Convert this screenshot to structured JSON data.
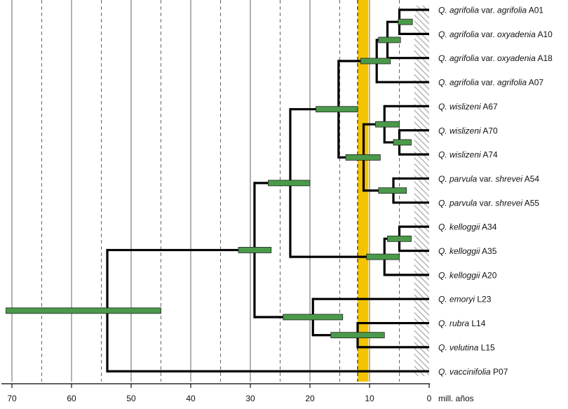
{
  "chart_data": {
    "type": "chronogram",
    "xlabel": "mill. años",
    "xlim": [
      71,
      0
    ],
    "ticks": [
      70,
      60,
      50,
      40,
      30,
      20,
      10,
      0
    ],
    "grid_solid": [
      70,
      60,
      50,
      40,
      30,
      20,
      10
    ],
    "grid_dashed": [
      65,
      55,
      45,
      35,
      25,
      15,
      5
    ],
    "highlight_band": {
      "from": 12,
      "to": 10.2,
      "color": "#F5C400"
    },
    "hatched_band": {
      "from": 2.5,
      "to": 0
    },
    "colors": {
      "branch": "#000000",
      "hpd_fill": "#4A9A4A",
      "hpd_stroke": "#222222",
      "grid": "#555555"
    },
    "taxa": [
      {
        "id": "A01",
        "segments": [
          {
            "text": "Q. agrifolia",
            "italic": true
          },
          {
            "text": " var. ",
            "italic": false
          },
          {
            "text": "agrifolia",
            "italic": true
          },
          {
            "text": " A01",
            "italic": false
          }
        ]
      },
      {
        "id": "A10",
        "segments": [
          {
            "text": "Q. agrifolia",
            "italic": true
          },
          {
            "text": " var. ",
            "italic": false
          },
          {
            "text": "oxyadenia",
            "italic": true
          },
          {
            "text": " A10",
            "italic": false
          }
        ]
      },
      {
        "id": "A18",
        "segments": [
          {
            "text": "Q. agrifolia",
            "italic": true
          },
          {
            "text": " var. ",
            "italic": false
          },
          {
            "text": "oxyadenia",
            "italic": true
          },
          {
            "text": " A18",
            "italic": false
          }
        ]
      },
      {
        "id": "A07",
        "segments": [
          {
            "text": "Q. agrifolia",
            "italic": true
          },
          {
            "text": " var. ",
            "italic": false
          },
          {
            "text": "agrifolia",
            "italic": true
          },
          {
            "text": " A07",
            "italic": false
          }
        ]
      },
      {
        "id": "A67",
        "segments": [
          {
            "text": "Q. wislizeni",
            "italic": true
          },
          {
            "text": " A67",
            "italic": false
          }
        ]
      },
      {
        "id": "A70",
        "segments": [
          {
            "text": "Q. wislizeni",
            "italic": true
          },
          {
            "text": " A70",
            "italic": false
          }
        ]
      },
      {
        "id": "A74",
        "segments": [
          {
            "text": "Q. wislizeni",
            "italic": true
          },
          {
            "text": " A74",
            "italic": false
          }
        ]
      },
      {
        "id": "A54",
        "segments": [
          {
            "text": "Q. parvula",
            "italic": true
          },
          {
            "text": " var. ",
            "italic": false
          },
          {
            "text": "shrevei",
            "italic": true
          },
          {
            "text": " A54",
            "italic": false
          }
        ]
      },
      {
        "id": "A55",
        "segments": [
          {
            "text": "Q. parvula",
            "italic": true
          },
          {
            "text": " var. ",
            "italic": false
          },
          {
            "text": "shrevei",
            "italic": true
          },
          {
            "text": " A55",
            "italic": false
          }
        ]
      },
      {
        "id": "A34",
        "segments": [
          {
            "text": "Q. kelloggii",
            "italic": true
          },
          {
            "text": " A34",
            "italic": false
          }
        ]
      },
      {
        "id": "A35",
        "segments": [
          {
            "text": "Q. kelloggii",
            "italic": true
          },
          {
            "text": " A35",
            "italic": false
          }
        ]
      },
      {
        "id": "A20",
        "segments": [
          {
            "text": "Q. kelloggii",
            "italic": true
          },
          {
            "text": " A20",
            "italic": false
          }
        ]
      },
      {
        "id": "L23",
        "segments": [
          {
            "text": "Q. emoryi",
            "italic": true
          },
          {
            "text": " L23",
            "italic": false
          }
        ]
      },
      {
        "id": "L14",
        "segments": [
          {
            "text": "Q. rubra",
            "italic": true
          },
          {
            "text": " L14",
            "italic": false
          }
        ]
      },
      {
        "id": "L15",
        "segments": [
          {
            "text": "Q. velutina",
            "italic": true
          },
          {
            "text": " L15",
            "italic": false
          }
        ]
      },
      {
        "id": "P07",
        "segments": [
          {
            "text": "Q. vaccinifolia",
            "italic": true
          },
          {
            "text": " P07",
            "italic": false
          }
        ]
      }
    ],
    "nodes": [
      {
        "id": "n1",
        "age": 5.0,
        "children": [
          "A01",
          "A10"
        ],
        "hpd": [
          5.2,
          2.8
        ]
      },
      {
        "id": "n2",
        "age": 7.0,
        "children": [
          "n1",
          "A18"
        ],
        "hpd": [
          8.5,
          4.8
        ]
      },
      {
        "id": "n3",
        "age": 8.8,
        "children": [
          "n2",
          "A07"
        ],
        "hpd": [
          11.5,
          6.5
        ]
      },
      {
        "id": "n4",
        "age": 5.0,
        "children": [
          "A70",
          "A74"
        ],
        "hpd": [
          6.0,
          3.0
        ]
      },
      {
        "id": "n5",
        "age": 7.5,
        "children": [
          "A67",
          "n4"
        ],
        "hpd": [
          9.0,
          5.0
        ]
      },
      {
        "id": "n6",
        "age": 6.0,
        "children": [
          "A54",
          "A55"
        ],
        "hpd": [
          8.5,
          3.8
        ]
      },
      {
        "id": "n7",
        "age": 11.0,
        "children": [
          "n5",
          "n6"
        ],
        "hpd": [
          14.0,
          8.2
        ]
      },
      {
        "id": "n8",
        "age": 15.2,
        "children": [
          "n3",
          "n7"
        ],
        "hpd": [
          19.0,
          12.0
        ]
      },
      {
        "id": "n9",
        "age": 5.0,
        "children": [
          "A34",
          "A35"
        ],
        "hpd": [
          7.0,
          3.0
        ]
      },
      {
        "id": "n10",
        "age": 7.5,
        "children": [
          "n9",
          "A20"
        ],
        "hpd": [
          10.5,
          5.0
        ]
      },
      {
        "id": "n11",
        "age": 23.3,
        "children": [
          "n8",
          "n10"
        ],
        "hpd": [
          27.0,
          20.0
        ]
      },
      {
        "id": "n12",
        "age": 12.0,
        "children": [
          "L14",
          "L15"
        ],
        "hpd": [
          16.5,
          7.5
        ]
      },
      {
        "id": "n13",
        "age": 19.5,
        "children": [
          "L23",
          "n12"
        ],
        "hpd": [
          24.5,
          14.5
        ]
      },
      {
        "id": "n14",
        "age": 29.3,
        "children": [
          "n11",
          "n13"
        ],
        "hpd": [
          32.0,
          26.5
        ]
      },
      {
        "id": "n15",
        "age": 54.0,
        "children": [
          "n14",
          "P07"
        ],
        "hpd": [
          71.0,
          45.0
        ]
      }
    ],
    "stem": {
      "node": "n15",
      "from": 54.0
    }
  }
}
